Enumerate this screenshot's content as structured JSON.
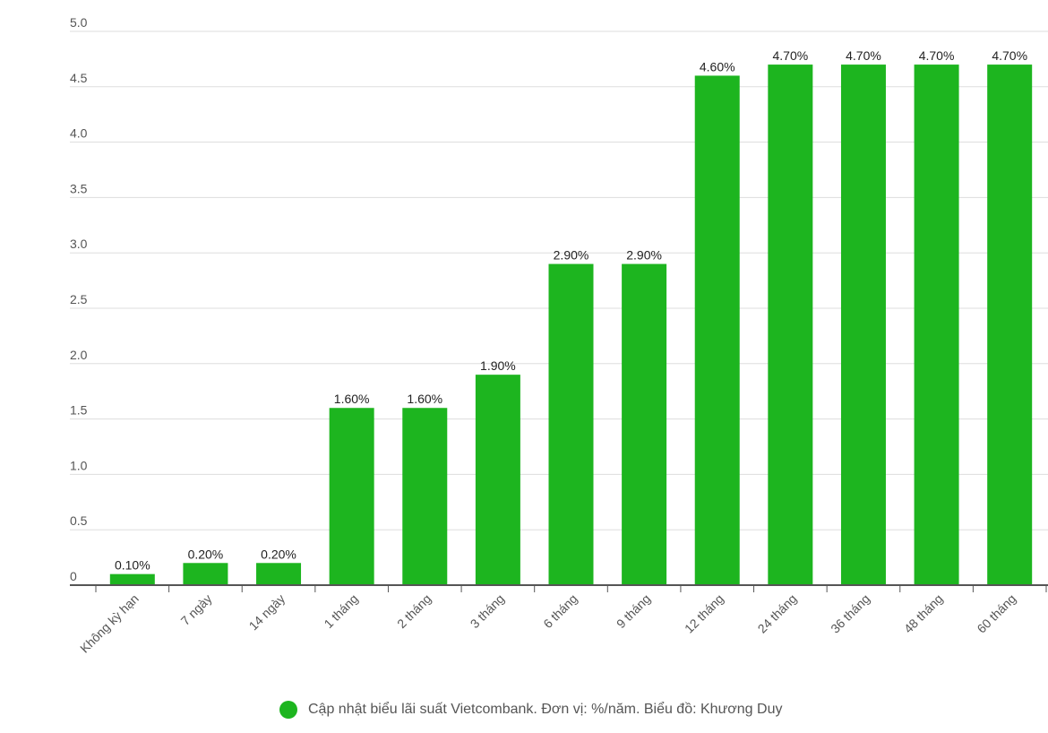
{
  "chart_data": {
    "type": "bar",
    "categories": [
      "Không kỳ hạn",
      "7 ngày",
      "14 ngày",
      "1 tháng",
      "2 tháng",
      "3 tháng",
      "6 tháng",
      "9 tháng",
      "12 tháng",
      "24 tháng",
      "36 tháng",
      "48 tháng",
      "60 tháng"
    ],
    "values": [
      0.1,
      0.2,
      0.2,
      1.6,
      1.6,
      1.9,
      2.9,
      2.9,
      4.6,
      4.7,
      4.7,
      4.7,
      4.7
    ],
    "data_labels": [
      "0.10%",
      "0.20%",
      "0.20%",
      "1.60%",
      "1.60%",
      "1.90%",
      "2.90%",
      "2.90%",
      "4.60%",
      "4.70%",
      "4.70%",
      "4.70%",
      "4.70%"
    ],
    "ylim": [
      0,
      5
    ],
    "yticks": [
      "0",
      "0.5",
      "1.0",
      "1.5",
      "2.0",
      "2.5",
      "3.0",
      "3.5",
      "4.0",
      "4.5",
      "5.0"
    ],
    "grid": true,
    "legend_position": "bottom-center",
    "bar_color": "#1db51f",
    "xlabel": "",
    "ylabel": ""
  },
  "legend": {
    "text": "Cập nhật biểu lãi suất Vietcombank. Đơn vị: %/năm. Biểu đồ: Khương Duy",
    "color": "#1db51f"
  }
}
